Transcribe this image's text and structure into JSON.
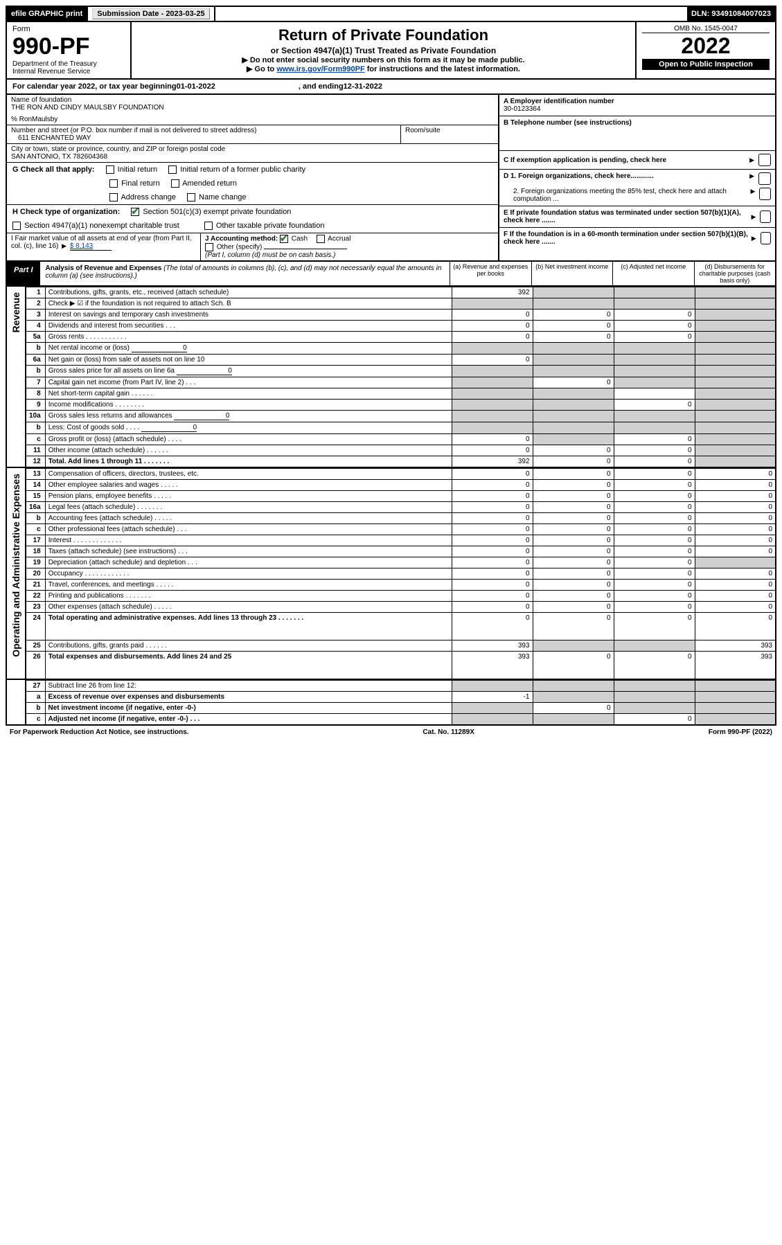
{
  "topbar": {
    "efile": "efile GRAPHIC print",
    "submission_label": "Submission Date - 2023-03-25",
    "dln": "DLN: 93491084007023"
  },
  "header": {
    "form_label": "Form",
    "form_num": "990-PF",
    "dept": "Department of the Treasury",
    "irs": "Internal Revenue Service",
    "title": "Return of Private Foundation",
    "subtitle": "or Section 4947(a)(1) Trust Treated as Private Foundation",
    "note1": "▶ Do not enter social security numbers on this form as it may be made public.",
    "note2_pre": "▶ Go to ",
    "note2_link": "www.irs.gov/Form990PF",
    "note2_post": " for instructions and the latest information.",
    "omb": "OMB No. 1545-0047",
    "year": "2022",
    "open": "Open to Public Inspection"
  },
  "calendar": {
    "text_pre": "For calendar year 2022, or tax year beginning ",
    "begin": "01-01-2022",
    "mid": " , and ending ",
    "end": "12-31-2022"
  },
  "id": {
    "name_label": "Name of foundation",
    "name": "THE RON AND CINDY MAULSBY FOUNDATION",
    "care_of": "% RonMaulsby",
    "addr_label": "Number and street (or P.O. box number if mail is not delivered to street address)",
    "addr": "611 ENCHANTED WAY",
    "room_label": "Room/suite",
    "city_label": "City or town, state or province, country, and ZIP or foreign postal code",
    "city": "SAN ANTONIO, TX  782604368",
    "a_label": "A Employer identification number",
    "a_val": "30-0123364",
    "b_label": "B Telephone number (see instructions)",
    "c_label": "C If exemption application is pending, check here"
  },
  "g": {
    "label": "G Check all that apply:",
    "opts": [
      "Initial return",
      "Final return",
      "Address change",
      "Initial return of a former public charity",
      "Amended return",
      "Name change"
    ]
  },
  "d": {
    "d1": "D 1. Foreign organizations, check here............",
    "d2": "2. Foreign organizations meeting the 85% test, check here and attach computation ..."
  },
  "h": {
    "label": "H Check type of organization:",
    "o1": "Section 501(c)(3) exempt private foundation",
    "o2": "Section 4947(a)(1) nonexempt charitable trust",
    "o3": "Other taxable private foundation"
  },
  "e": "E  If private foundation status was terminated under section 507(b)(1)(A), check here .......",
  "i": {
    "label": "I Fair market value of all assets at end of year (from Part II, col. (c), line 16) ",
    "val": "$  8,143"
  },
  "j": {
    "label": "J Accounting method:",
    "cash": "Cash",
    "accrual": "Accrual",
    "other": "Other (specify)",
    "note": "(Part I, column (d) must be on cash basis.)"
  },
  "f": "F  If the foundation is in a 60-month termination under section 507(b)(1)(B), check here .......",
  "part1": {
    "label": "Part I",
    "title": "Analysis of Revenue and Expenses",
    "title_note": " (The total of amounts in columns (b), (c), and (d) may not necessarily equal the amounts in column (a) (see instructions).)",
    "col_a": "(a) Revenue and expenses per books",
    "col_b": "(b) Net investment income",
    "col_c": "(c) Adjusted net income",
    "col_d": "(d) Disbursements for charitable purposes (cash basis only)"
  },
  "sections": {
    "revenue": "Revenue",
    "expenses": "Operating and Administrative Expenses"
  },
  "rows": [
    {
      "n": "1",
      "d": "Contributions, gifts, grants, etc., received (attach schedule)",
      "a": "392",
      "b": "",
      "c": "",
      "dcol": "",
      "b_sh": true,
      "c_sh": true,
      "d_sh": true
    },
    {
      "n": "2",
      "d": "Check ▶ ☑ if the foundation is not required to attach Sch. B",
      "a": "",
      "b": "",
      "c": "",
      "dcol": "",
      "a_sh": true,
      "b_sh": true,
      "c_sh": true,
      "d_sh": true,
      "bold_not": true
    },
    {
      "n": "3",
      "d": "Interest on savings and temporary cash investments",
      "a": "0",
      "b": "0",
      "c": "0",
      "dcol": "",
      "d_sh": true
    },
    {
      "n": "4",
      "d": "Dividends and interest from securities   .   .   .",
      "a": "0",
      "b": "0",
      "c": "0",
      "dcol": "",
      "d_sh": true
    },
    {
      "n": "5a",
      "d": "Gross rents   .   .   .   .   .   .   .   .   .   .   .",
      "a": "0",
      "b": "0",
      "c": "0",
      "dcol": "",
      "d_sh": true
    },
    {
      "n": "b",
      "d": "Net rental income or (loss)",
      "inline_val": "0",
      "a": "",
      "b": "",
      "c": "",
      "dcol": "",
      "a_sh": true,
      "b_sh": true,
      "c_sh": true,
      "d_sh": true
    },
    {
      "n": "6a",
      "d": "Net gain or (loss) from sale of assets not on line 10",
      "a": "0",
      "b": "",
      "c": "",
      "dcol": "",
      "b_sh": true,
      "c_sh": true,
      "d_sh": true
    },
    {
      "n": "b",
      "d": "Gross sales price for all assets on line 6a",
      "inline_val": "0",
      "a": "",
      "b": "",
      "c": "",
      "dcol": "",
      "a_sh": true,
      "b_sh": true,
      "c_sh": true,
      "d_sh": true
    },
    {
      "n": "7",
      "d": "Capital gain net income (from Part IV, line 2)   .   .   .",
      "a": "",
      "b": "0",
      "c": "",
      "dcol": "",
      "a_sh": true,
      "c_sh": true,
      "d_sh": true
    },
    {
      "n": "8",
      "d": "Net short-term capital gain   .   .   .   .   .   .",
      "a": "",
      "b": "",
      "c": "",
      "dcol": "",
      "a_sh": true,
      "b_sh": true,
      "d_sh": true
    },
    {
      "n": "9",
      "d": "Income modifications   .   .   .   .   .   .   .   .",
      "a": "",
      "b": "",
      "c": "0",
      "dcol": "",
      "a_sh": true,
      "b_sh": true,
      "d_sh": true
    },
    {
      "n": "10a",
      "d": "Gross sales less returns and allowances",
      "inline_val": "0",
      "a": "",
      "b": "",
      "c": "",
      "dcol": "",
      "a_sh": true,
      "b_sh": true,
      "c_sh": true,
      "d_sh": true
    },
    {
      "n": "b",
      "d": "Less: Cost of goods sold   .   .   .   .",
      "inline_val": "0",
      "a": "",
      "b": "",
      "c": "",
      "dcol": "",
      "a_sh": true,
      "b_sh": true,
      "c_sh": true,
      "d_sh": true
    },
    {
      "n": "c",
      "d": "Gross profit or (loss) (attach schedule)   .   .   .   .",
      "a": "0",
      "b": "",
      "c": "0",
      "dcol": "",
      "b_sh": true,
      "d_sh": true
    },
    {
      "n": "11",
      "d": "Other income (attach schedule)   .   .   .   .   .   .",
      "a": "0",
      "b": "0",
      "c": "0",
      "dcol": "",
      "d_sh": true
    },
    {
      "n": "12",
      "d": "Total. Add lines 1 through 11   .   .   .   .   .   .   .",
      "a": "392",
      "b": "0",
      "c": "0",
      "dcol": "",
      "d_sh": true,
      "bold": true
    }
  ],
  "exp_rows": [
    {
      "n": "13",
      "d": "Compensation of officers, directors, trustees, etc.",
      "a": "0",
      "b": "0",
      "c": "0",
      "dcol": "0"
    },
    {
      "n": "14",
      "d": "Other employee salaries and wages   .   .   .   .   .",
      "a": "0",
      "b": "0",
      "c": "0",
      "dcol": "0"
    },
    {
      "n": "15",
      "d": "Pension plans, employee benefits   .   .   .   .   .",
      "a": "0",
      "b": "0",
      "c": "0",
      "dcol": "0"
    },
    {
      "n": "16a",
      "d": "Legal fees (attach schedule)   .   .   .   .   .   .   .",
      "a": "0",
      "b": "0",
      "c": "0",
      "dcol": "0"
    },
    {
      "n": "b",
      "d": "Accounting fees (attach schedule)   .   .   .   .   .",
      "a": "0",
      "b": "0",
      "c": "0",
      "dcol": "0"
    },
    {
      "n": "c",
      "d": "Other professional fees (attach schedule)   .   .   .",
      "a": "0",
      "b": "0",
      "c": "0",
      "dcol": "0"
    },
    {
      "n": "17",
      "d": "Interest   .   .   .   .   .   .   .   .   .   .   .   .   .",
      "a": "0",
      "b": "0",
      "c": "0",
      "dcol": "0"
    },
    {
      "n": "18",
      "d": "Taxes (attach schedule) (see instructions)   .   .   .",
      "a": "0",
      "b": "0",
      "c": "0",
      "dcol": "0"
    },
    {
      "n": "19",
      "d": "Depreciation (attach schedule) and depletion   .   .   .",
      "a": "0",
      "b": "0",
      "c": "0",
      "dcol": "",
      "d_sh": true
    },
    {
      "n": "20",
      "d": "Occupancy   .   .   .   .   .   .   .   .   .   .   .   .",
      "a": "0",
      "b": "0",
      "c": "0",
      "dcol": "0"
    },
    {
      "n": "21",
      "d": "Travel, conferences, and meetings   .   .   .   .   .",
      "a": "0",
      "b": "0",
      "c": "0",
      "dcol": "0"
    },
    {
      "n": "22",
      "d": "Printing and publications   .   .   .   .   .   .   .",
      "a": "0",
      "b": "0",
      "c": "0",
      "dcol": "0"
    },
    {
      "n": "23",
      "d": "Other expenses (attach schedule)   .   .   .   .   .",
      "a": "0",
      "b": "0",
      "c": "0",
      "dcol": "0"
    },
    {
      "n": "24",
      "d": "Total operating and administrative expenses. Add lines 13 through 23   .   .   .   .   .   .   .",
      "a": "0",
      "b": "0",
      "c": "0",
      "dcol": "0",
      "bold": true,
      "tall": true
    },
    {
      "n": "25",
      "d": "Contributions, gifts, grants paid   .   .   .   .   .   .",
      "a": "393",
      "b": "",
      "c": "",
      "dcol": "393",
      "b_sh": true,
      "c_sh": true
    },
    {
      "n": "26",
      "d": "Total expenses and disbursements. Add lines 24 and 25",
      "a": "393",
      "b": "0",
      "c": "0",
      "dcol": "393",
      "bold": true,
      "tall": true
    }
  ],
  "bottom_rows": [
    {
      "n": "27",
      "d": "Subtract line 26 from line 12:",
      "a": "",
      "b": "",
      "c": "",
      "dcol": "",
      "a_sh": true,
      "b_sh": true,
      "c_sh": true,
      "d_sh": true
    },
    {
      "n": "a",
      "d": "Excess of revenue over expenses and disbursements",
      "a": "-1",
      "b": "",
      "c": "",
      "dcol": "",
      "b_sh": true,
      "c_sh": true,
      "d_sh": true,
      "bold": true
    },
    {
      "n": "b",
      "d": "Net investment income (if negative, enter -0-)",
      "a": "",
      "b": "0",
      "c": "",
      "dcol": "",
      "a_sh": true,
      "c_sh": true,
      "d_sh": true,
      "bold": true
    },
    {
      "n": "c",
      "d": "Adjusted net income (if negative, enter -0-)   .   .   .",
      "a": "",
      "b": "",
      "c": "0",
      "dcol": "",
      "a_sh": true,
      "b_sh": true,
      "d_sh": true,
      "bold": true
    }
  ],
  "footer": {
    "left": "For Paperwork Reduction Act Notice, see instructions.",
    "mid": "Cat. No. 11289X",
    "right": "Form 990-PF (2022)"
  },
  "colors": {
    "header_black": "#000000",
    "shade": "#d0d0d0",
    "link": "#0645ad",
    "check": "#2e7d32"
  }
}
